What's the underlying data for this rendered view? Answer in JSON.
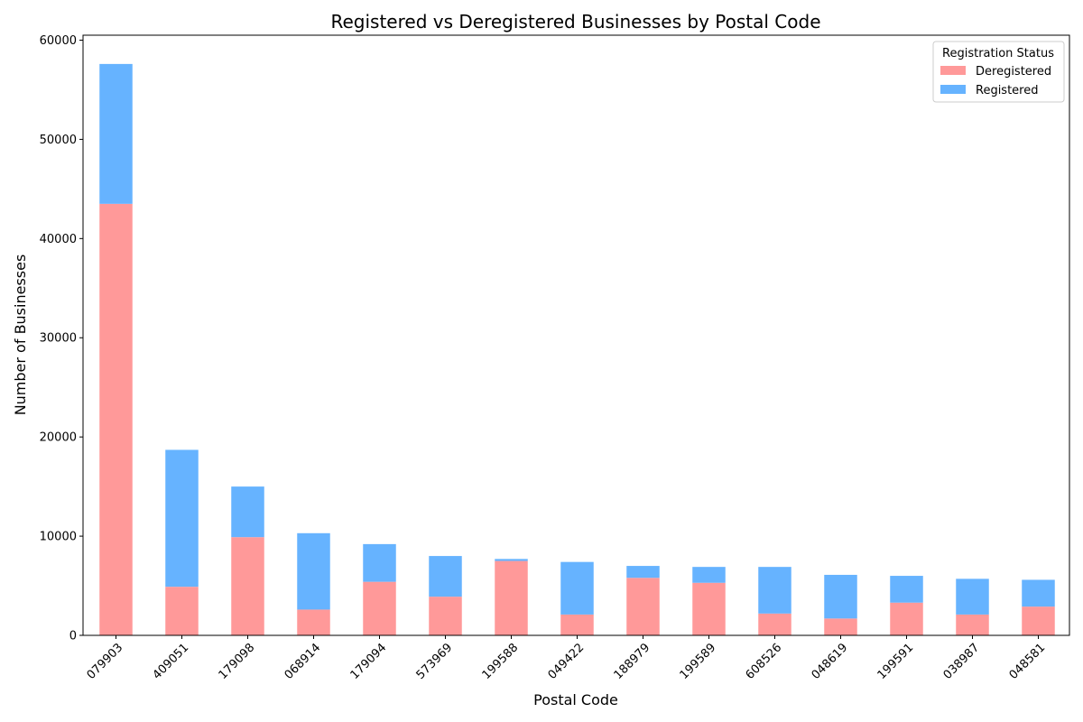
{
  "chart_data": {
    "type": "bar",
    "stacked": true,
    "title": "Registered vs Deregistered Businesses by Postal Code",
    "xlabel": "Postal Code",
    "ylabel": "Number of Businesses",
    "ylim": [
      0,
      60500
    ],
    "yticks": [
      0,
      10000,
      20000,
      30000,
      40000,
      50000,
      60000
    ],
    "grid": false,
    "legend_placement": "top-right",
    "legend_title": "Registration Status",
    "categories": [
      "079903",
      "409051",
      "179098",
      "068914",
      "179094",
      "573969",
      "199588",
      "049422",
      "188979",
      "199589",
      "608526",
      "048619",
      "199591",
      "038987",
      "048581"
    ],
    "series": [
      {
        "name": "Deregistered",
        "color": "#ff9999",
        "values": [
          43500,
          4900,
          9900,
          2600,
          5400,
          3900,
          7500,
          2100,
          5800,
          5300,
          2200,
          1700,
          3300,
          2100,
          2900
        ]
      },
      {
        "name": "Registered",
        "color": "#66b3ff",
        "values": [
          14100,
          13800,
          5100,
          7700,
          3800,
          4100,
          200,
          5300,
          1200,
          1600,
          4700,
          4400,
          2700,
          3600,
          2700
        ]
      }
    ]
  }
}
